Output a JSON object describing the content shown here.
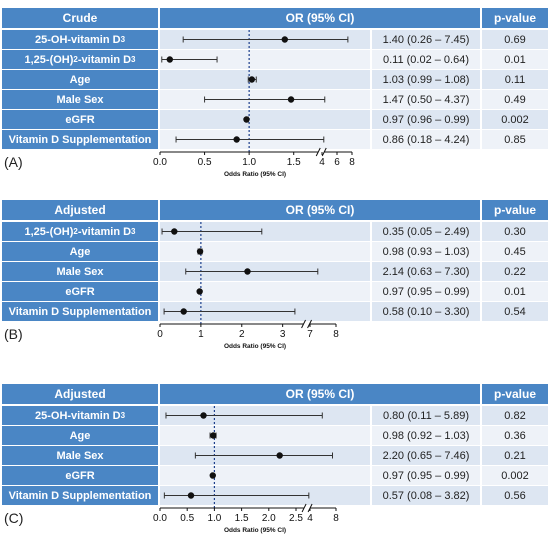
{
  "panels": [
    {
      "letter": "(A)",
      "header": {
        "group": "Crude",
        "or": "OR (95% CI)",
        "p": "p-value"
      },
      "rows": [
        {
          "label": "25-OH-vitamin D",
          "sub": "3",
          "or": 1.4,
          "lo": 0.26,
          "hi": 7.45,
          "or_text": "1.40 (0.26 – 7.45)",
          "p": "0.69"
        },
        {
          "label": "1,25-(OH)",
          "sub": "2",
          "suffix": "-vitamin D",
          "sub2": "3",
          "or": 0.11,
          "lo": 0.02,
          "hi": 0.64,
          "or_text": "0.11 (0.02 – 0.64)",
          "p": "0.01"
        },
        {
          "label": "Age",
          "or": 1.03,
          "lo": 0.99,
          "hi": 1.08,
          "or_text": "1.03 (0.99 – 1.08)",
          "p": "0.11"
        },
        {
          "label": "Male Sex",
          "or": 1.47,
          "lo": 0.5,
          "hi": 4.37,
          "or_text": "1.47 (0.50 – 4.37)",
          "p": "0.49"
        },
        {
          "label": "eGFR",
          "or": 0.97,
          "lo": 0.96,
          "hi": 0.99,
          "or_text": "0.97 (0.96 – 0.99)",
          "p": "0.002"
        },
        {
          "label": "Vitamin D Supplementation",
          "or": 0.86,
          "lo": 0.18,
          "hi": 4.24,
          "or_text": "0.86 (0.18 – 4.24)",
          "p": "0.85"
        }
      ],
      "axis": {
        "ticks_left": [
          "0.0",
          "0.5",
          "1.0",
          "1.5"
        ],
        "ticks_right": [
          "4",
          "6",
          "8"
        ],
        "xlabel": "Odds Ratio (95% CI)"
      }
    },
    {
      "letter": "(B)",
      "header": {
        "group": "Adjusted",
        "or": "OR (95% CI)",
        "p": "p-value"
      },
      "rows": [
        {
          "label": "1,25-(OH)",
          "sub": "2",
          "suffix": "-vitamin D",
          "sub2": "3",
          "or": 0.35,
          "lo": 0.05,
          "hi": 2.49,
          "or_text": "0.35 (0.05 – 2.49)",
          "p": "0.30"
        },
        {
          "label": "Age",
          "or": 0.98,
          "lo": 0.93,
          "hi": 1.03,
          "or_text": "0.98 (0.93 – 1.03)",
          "p": "0.45"
        },
        {
          "label": "Male Sex",
          "or": 2.14,
          "lo": 0.63,
          "hi": 7.3,
          "or_text": "2.14 (0.63 – 7.30)",
          "p": "0.22"
        },
        {
          "label": "eGFR",
          "or": 0.97,
          "lo": 0.95,
          "hi": 0.99,
          "or_text": "0.97 (0.95 – 0.99)",
          "p": "0.01"
        },
        {
          "label": "Vitamin D Supplementation",
          "or": 0.58,
          "lo": 0.1,
          "hi": 3.3,
          "or_text": "0.58 (0.10 – 3.30)",
          "p": "0.54"
        }
      ],
      "axis": {
        "ticks_left": [
          "0",
          "1",
          "2",
          "3"
        ],
        "ticks_right": [
          "7",
          "8"
        ],
        "xlabel": "Odds Ratio (95% CI)"
      }
    },
    {
      "letter": "(C)",
      "header": {
        "group": "Adjusted",
        "or": "OR (95% CI)",
        "p": "p-value"
      },
      "rows": [
        {
          "label": "25-OH-vitamin D",
          "sub": "3",
          "or": 0.8,
          "lo": 0.11,
          "hi": 5.89,
          "or_text": "0.80 (0.11 – 5.89)",
          "p": "0.82"
        },
        {
          "label": "Age",
          "or": 0.98,
          "lo": 0.92,
          "hi": 1.03,
          "or_text": "0.98 (0.92 – 1.03)",
          "p": "0.36"
        },
        {
          "label": "Male Sex",
          "or": 2.2,
          "lo": 0.65,
          "hi": 7.46,
          "or_text": "2.20 (0.65 – 7.46)",
          "p": "0.21"
        },
        {
          "label": "eGFR",
          "or": 0.97,
          "lo": 0.95,
          "hi": 0.99,
          "or_text": "0.97 (0.95 – 0.99)",
          "p": "0.002"
        },
        {
          "label": "Vitamin D Supplementation",
          "or": 0.57,
          "lo": 0.08,
          "hi": 3.82,
          "or_text": "0.57 (0.08 – 3.82)",
          "p": "0.56"
        }
      ],
      "axis": {
        "ticks_left": [
          "0.0",
          "0.5",
          "1.0",
          "1.5",
          "2.0",
          "2.5"
        ],
        "ticks_right": [
          "4",
          "8"
        ],
        "xlabel": "Odds Ratio (95% CI)"
      }
    }
  ],
  "colors": {
    "header": "#4a86c5",
    "row_even": "#dde6f2",
    "row_odd": "#eef2f8",
    "text": "#222222"
  },
  "chart_data": [
    {
      "type": "forest",
      "title": "",
      "xlabel": "Odds Ratio (95% CI)",
      "reference_line": 1.0,
      "axis_break": true,
      "categories": [
        "25-OH-vitamin D3",
        "1,25-(OH)2-vitamin D3",
        "Age",
        "Male Sex",
        "eGFR",
        "Vitamin D Supplementation"
      ],
      "or": [
        1.4,
        0.11,
        1.03,
        1.47,
        0.97,
        0.86
      ],
      "ci_low": [
        0.26,
        0.02,
        0.99,
        0.5,
        0.96,
        0.18
      ],
      "ci_high": [
        7.45,
        0.64,
        1.08,
        4.37,
        0.99,
        4.24
      ],
      "p": [
        "0.69",
        "0.01",
        "0.11",
        "0.49",
        "0.002",
        "0.85"
      ]
    },
    {
      "type": "forest",
      "title": "",
      "xlabel": "Odds Ratio (95% CI)",
      "reference_line": 1.0,
      "axis_break": true,
      "categories": [
        "1,25-(OH)2-vitamin D3",
        "Age",
        "Male Sex",
        "eGFR",
        "Vitamin D Supplementation"
      ],
      "or": [
        0.35,
        0.98,
        2.14,
        0.97,
        0.58
      ],
      "ci_low": [
        0.05,
        0.93,
        0.63,
        0.95,
        0.1
      ],
      "ci_high": [
        2.49,
        1.03,
        7.3,
        0.99,
        3.3
      ],
      "p": [
        "0.30",
        "0.45",
        "0.22",
        "0.01",
        "0.54"
      ]
    },
    {
      "type": "forest",
      "title": "",
      "xlabel": "Odds Ratio (95% CI)",
      "reference_line": 1.0,
      "axis_break": true,
      "categories": [
        "25-OH-vitamin D3",
        "Age",
        "Male Sex",
        "eGFR",
        "Vitamin D Supplementation"
      ],
      "or": [
        0.8,
        0.98,
        2.2,
        0.97,
        0.57
      ],
      "ci_low": [
        0.11,
        0.92,
        0.65,
        0.95,
        0.08
      ],
      "ci_high": [
        5.89,
        1.03,
        7.46,
        0.99,
        3.82
      ],
      "p": [
        "0.82",
        "0.36",
        "0.21",
        "0.002",
        "0.56"
      ]
    }
  ]
}
